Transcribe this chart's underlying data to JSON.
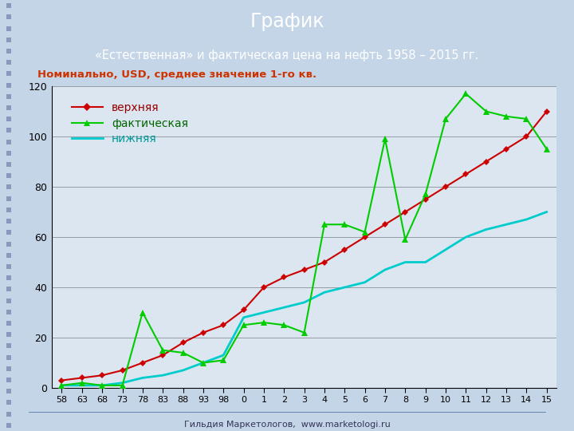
{
  "title": "График",
  "subtitle": "«Естественная» и фактическая цена на нефть 1958 – 2015 гг.",
  "ylabel_text": "Номинально, USD, среднее значение 1-го кв.",
  "footer": "Гильдия Маркетологов,  www.marketologi.ru",
  "header_bg": "#1e3f70",
  "chart_bg": "#dce6f1",
  "outer_bg": "#c5d5e8",
  "title_color": "#ffffff",
  "subtitle_color": "#ffffff",
  "ylabel_color": "#cc3300",
  "x_labels": [
    "58",
    "63",
    "68",
    "73",
    "78",
    "83",
    "88",
    "93",
    "98",
    "0",
    "1",
    "2",
    "3",
    "4",
    "5",
    "6",
    "7",
    "8",
    "9",
    "10",
    "11",
    "12",
    "13",
    "14",
    "15"
  ],
  "верхняя_y": [
    3,
    4,
    5,
    7,
    10,
    13,
    18,
    22,
    25,
    31,
    40,
    44,
    47,
    50,
    55,
    60,
    65,
    70,
    75,
    80,
    85,
    90,
    95,
    100,
    110
  ],
  "фактическая_y": [
    1,
    2,
    1,
    1,
    30,
    15,
    14,
    10,
    11,
    25,
    26,
    25,
    22,
    65,
    65,
    62,
    99,
    59,
    77,
    107,
    117,
    110,
    108,
    107,
    95
  ],
  "нижняя_y": [
    1,
    1,
    1,
    2,
    4,
    5,
    7,
    10,
    13,
    28,
    30,
    32,
    34,
    38,
    40,
    42,
    47,
    50,
    50,
    55,
    60,
    63,
    65,
    67,
    70
  ],
  "верхняя_color": "#cc0000",
  "фактическая_color": "#00cc00",
  "нижняя_color": "#00cccc",
  "ylim": [
    0,
    120
  ],
  "yticks": [
    0,
    20,
    40,
    60,
    80,
    100,
    120
  ],
  "legend_верхняя": "верхняя",
  "legend_фактическая": "фактическая",
  "legend_нижняя": "нижняя",
  "dot_color": "#8899bb"
}
